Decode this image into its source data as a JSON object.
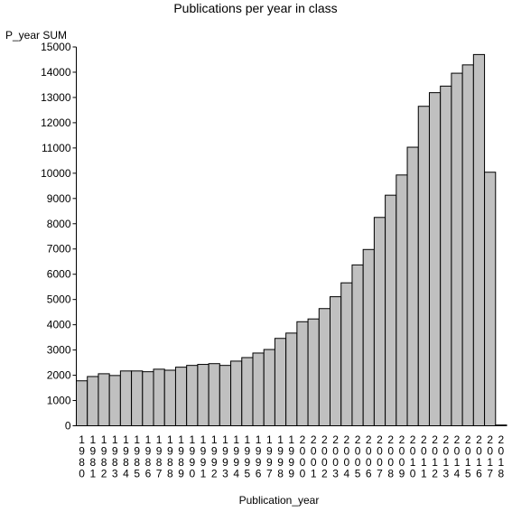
{
  "chart_data": {
    "type": "bar",
    "title": "Publications per year in class",
    "ylabel": "P_year SUM",
    "xlabel": "Publication_year",
    "ylim": [
      0,
      15000
    ],
    "yticks": [
      0,
      1000,
      2000,
      3000,
      4000,
      5000,
      6000,
      7000,
      8000,
      9000,
      10000,
      11000,
      12000,
      13000,
      14000,
      15000
    ],
    "grid": false,
    "bar_color": "#c0c0c0",
    "bar_edge_color": "#000000",
    "categories": [
      "1980",
      "1981",
      "1982",
      "1983",
      "1984",
      "1985",
      "1986",
      "1987",
      "1988",
      "1989",
      "1990",
      "1991",
      "1992",
      "1993",
      "1994",
      "1995",
      "1996",
      "1997",
      "1998",
      "1999",
      "2000",
      "2001",
      "2002",
      "2003",
      "2004",
      "2005",
      "2006",
      "2007",
      "2008",
      "2009",
      "2010",
      "2011",
      "2012",
      "2013",
      "2014",
      "2015",
      "2016",
      "2017",
      "2018"
    ],
    "values": [
      1780,
      1950,
      2060,
      1990,
      2170,
      2170,
      2140,
      2240,
      2200,
      2320,
      2390,
      2430,
      2460,
      2390,
      2560,
      2700,
      2880,
      3020,
      3460,
      3670,
      4120,
      4230,
      4640,
      5110,
      5660,
      6370,
      6980,
      8250,
      9130,
      9930,
      11030,
      12650,
      13190,
      13450,
      13960,
      14290,
      14700,
      10040,
      30
    ]
  }
}
